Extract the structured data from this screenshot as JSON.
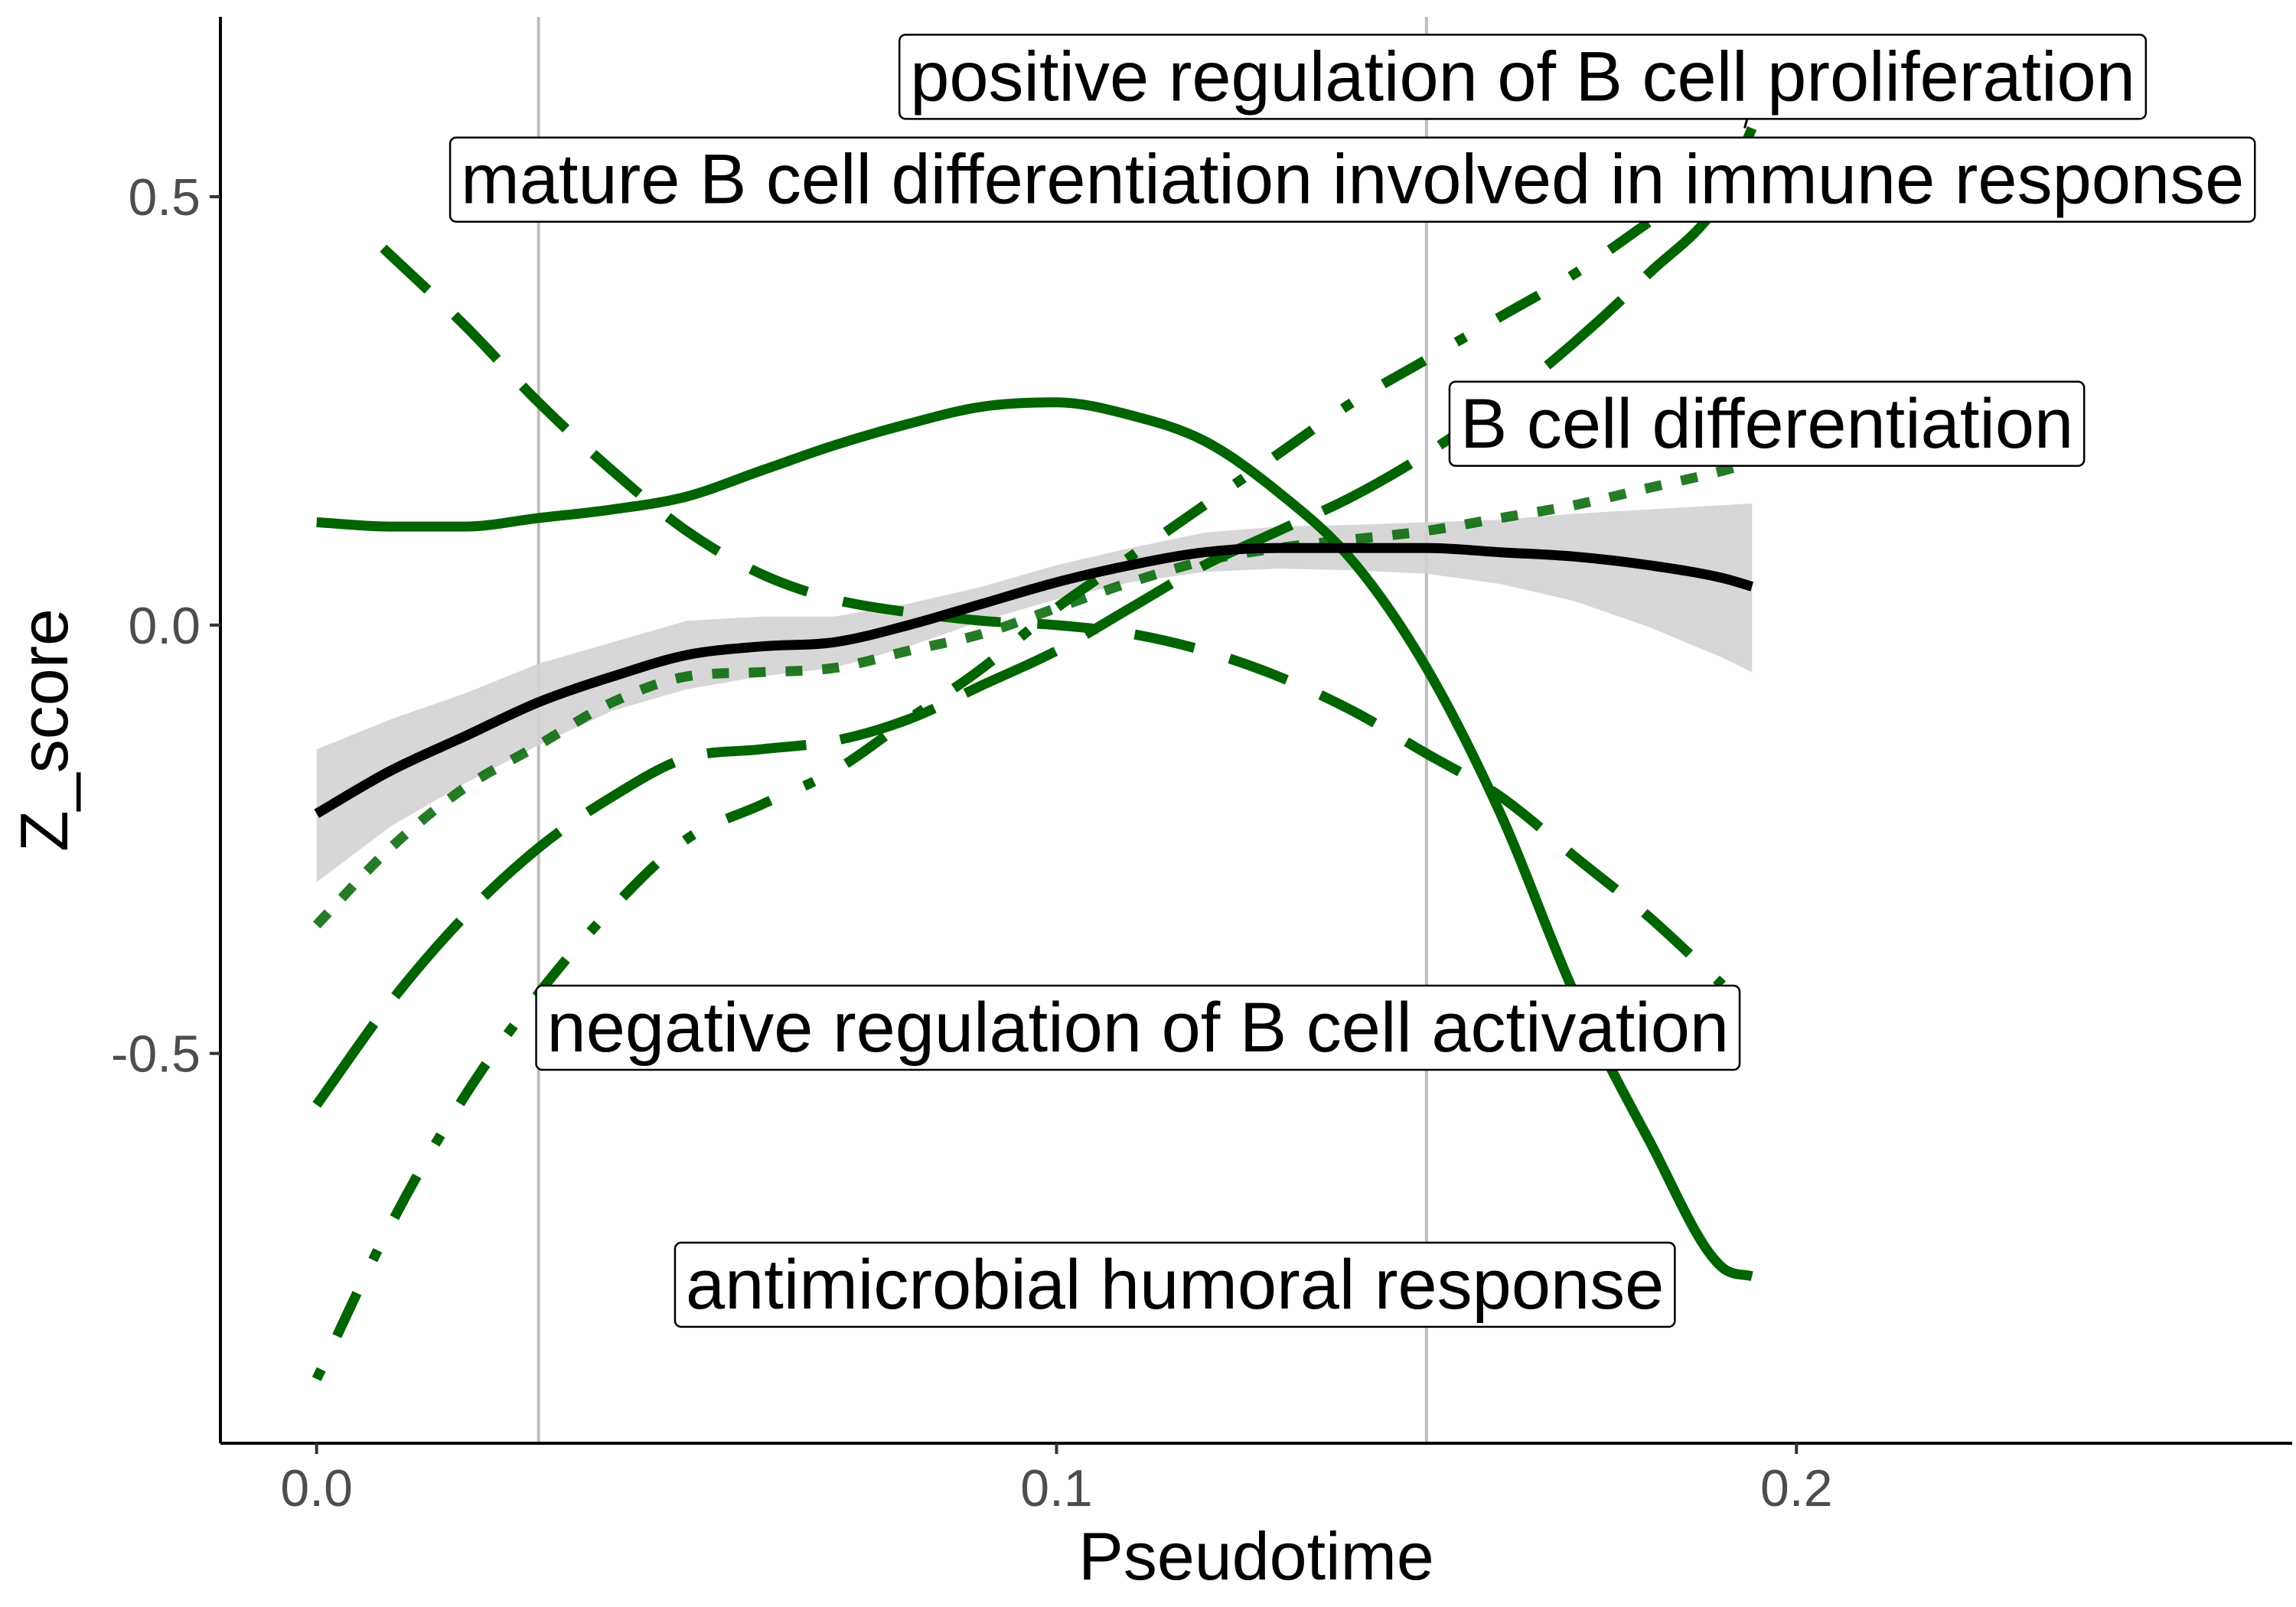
{
  "chart_data": {
    "type": "line",
    "title": "",
    "xlabel": "Pseudotime",
    "ylabel": "Z_score",
    "xlim": [
      -0.013,
      0.267
    ],
    "ylim": [
      -0.955,
      0.71
    ],
    "x_ticks": [
      0.0,
      0.1,
      0.2
    ],
    "x_tick_labels": [
      "0.0",
      "0.1",
      "0.2"
    ],
    "y_ticks": [
      -0.5,
      0.0,
      0.5
    ],
    "y_tick_labels": [
      "-0.5",
      "0.0",
      "0.5"
    ],
    "vlines": [
      0.03,
      0.15
    ],
    "grid": false,
    "legend": "none",
    "colors": {
      "terms": "#006400",
      "mean": "#000000",
      "band": "#d3d3d3",
      "vline": "#bebebe"
    },
    "series": [
      {
        "name": "antimicrobial humoral response",
        "style": "solid",
        "x": [
          0.0,
          0.01,
          0.02,
          0.03,
          0.04,
          0.05,
          0.06,
          0.07,
          0.08,
          0.09,
          0.1,
          0.11,
          0.12,
          0.13,
          0.14,
          0.15,
          0.16,
          0.17,
          0.18,
          0.19,
          0.194
        ],
        "y": [
          0.12,
          0.115,
          0.115,
          0.125,
          0.135,
          0.15,
          0.18,
          0.21,
          0.235,
          0.255,
          0.26,
          0.245,
          0.215,
          0.155,
          0.075,
          -0.05,
          -0.22,
          -0.43,
          -0.6,
          -0.75,
          -0.76
        ]
      },
      {
        "name": "mature B cell differentiation involved in immune response",
        "style": "dashed",
        "x": [
          0.009,
          0.02,
          0.03,
          0.04,
          0.05,
          0.06,
          0.07,
          0.08,
          0.09,
          0.1,
          0.11,
          0.12,
          0.13,
          0.14,
          0.15,
          0.16,
          0.17,
          0.18,
          0.19
        ],
        "y": [
          0.44,
          0.35,
          0.26,
          0.18,
          0.11,
          0.06,
          0.03,
          0.015,
          0.005,
          0.0,
          -0.01,
          -0.03,
          -0.06,
          -0.1,
          -0.15,
          -0.2,
          -0.27,
          -0.34,
          -0.42
        ]
      },
      {
        "name": "positive regulation of B cell proliferation",
        "style": "longdash",
        "x": [
          0.0,
          0.01,
          0.02,
          0.03,
          0.04,
          0.05,
          0.06,
          0.07,
          0.08,
          0.09,
          0.1,
          0.11,
          0.12,
          0.13,
          0.14,
          0.15,
          0.16,
          0.17,
          0.18,
          0.19,
          0.194
        ],
        "y": [
          -0.56,
          -0.44,
          -0.34,
          -0.26,
          -0.2,
          -0.155,
          -0.145,
          -0.135,
          -0.11,
          -0.07,
          -0.03,
          0.02,
          0.07,
          0.11,
          0.15,
          0.2,
          0.26,
          0.33,
          0.41,
          0.5,
          0.58
        ]
      },
      {
        "name": "negative regulation of B cell activation",
        "style": "dotdash",
        "x": [
          0.0,
          0.01,
          0.02,
          0.03,
          0.04,
          0.05,
          0.06,
          0.07,
          0.08,
          0.09,
          0.1,
          0.11,
          0.12,
          0.13,
          0.14,
          0.15,
          0.16,
          0.17,
          0.18,
          0.19,
          0.194
        ],
        "y": [
          -0.88,
          -0.7,
          -0.55,
          -0.43,
          -0.33,
          -0.25,
          -0.21,
          -0.17,
          -0.11,
          -0.05,
          0.02,
          0.08,
          0.14,
          0.2,
          0.26,
          0.31,
          0.36,
          0.41,
          0.47,
          0.53,
          0.57
        ]
      },
      {
        "name": "B cell differentiation",
        "style": "dotted",
        "x": [
          0.0,
          0.01,
          0.02,
          0.03,
          0.04,
          0.05,
          0.06,
          0.07,
          0.08,
          0.09,
          0.1,
          0.11,
          0.12,
          0.13,
          0.14,
          0.15,
          0.16,
          0.17,
          0.18,
          0.19,
          0.194
        ],
        "y": [
          -0.35,
          -0.26,
          -0.19,
          -0.14,
          -0.09,
          -0.06,
          -0.055,
          -0.05,
          -0.03,
          -0.01,
          0.02,
          0.05,
          0.075,
          0.09,
          0.1,
          0.11,
          0.125,
          0.14,
          0.16,
          0.18,
          0.19
        ]
      }
    ],
    "mean": {
      "x": [
        0.0,
        0.01,
        0.02,
        0.03,
        0.04,
        0.05,
        0.06,
        0.07,
        0.08,
        0.09,
        0.1,
        0.11,
        0.12,
        0.13,
        0.14,
        0.15,
        0.16,
        0.17,
        0.18,
        0.19,
        0.194
      ],
      "y": [
        -0.22,
        -0.17,
        -0.13,
        -0.09,
        -0.06,
        -0.035,
        -0.025,
        -0.02,
        0.0,
        0.025,
        0.05,
        0.07,
        0.085,
        0.09,
        0.09,
        0.09,
        0.085,
        0.08,
        0.07,
        0.055,
        0.045
      ],
      "lower": [
        -0.3,
        -0.235,
        -0.185,
        -0.14,
        -0.1,
        -0.075,
        -0.06,
        -0.05,
        -0.025,
        0.005,
        0.03,
        0.05,
        0.062,
        0.066,
        0.064,
        0.06,
        0.048,
        0.028,
        -0.002,
        -0.038,
        -0.055
      ],
      "upper": [
        -0.145,
        -0.11,
        -0.08,
        -0.045,
        -0.02,
        0.005,
        0.01,
        0.01,
        0.025,
        0.045,
        0.07,
        0.09,
        0.108,
        0.115,
        0.117,
        0.12,
        0.123,
        0.13,
        0.135,
        0.14,
        0.142
      ]
    },
    "annotations": [
      {
        "label": "positive regulation of B cell proliferation",
        "x": 0.163,
        "y": 0.64,
        "anchor_x": 0.193,
        "anchor_y": 0.58
      },
      {
        "label": "mature B cell differentiation involved in immune response",
        "x": 0.14,
        "y": 0.52
      },
      {
        "label": "B cell differentiation",
        "x": 0.196,
        "y": 0.235
      },
      {
        "label": "negative regulation of B cell activation",
        "x": 0.111,
        "y": -0.47
      },
      {
        "label": "antimicrobial humoral response",
        "x": 0.116,
        "y": -0.77
      }
    ]
  }
}
